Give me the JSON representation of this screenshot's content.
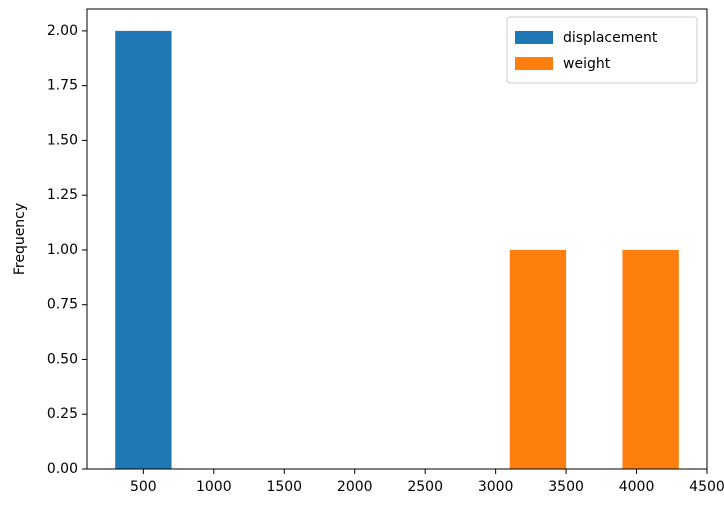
{
  "chart_data": {
    "type": "histogram",
    "y_label": "Frequency",
    "bins": [
      300,
      700,
      1100,
      1500,
      1900,
      2300,
      2700,
      3100,
      3500,
      3900,
      4300
    ],
    "series": [
      {
        "name": "displacement",
        "color": "#1f77b4",
        "values": [
          2,
          0,
          0,
          0,
          0,
          0,
          0,
          0,
          0,
          0
        ]
      },
      {
        "name": "weight",
        "color": "#ff7f0e",
        "values": [
          0,
          0,
          0,
          0,
          0,
          0,
          0,
          1,
          0,
          1
        ]
      }
    ],
    "xlim": [
      100,
      4500
    ],
    "xticks": [
      500,
      1000,
      1500,
      2000,
      2500,
      3000,
      3500,
      4000,
      4500
    ],
    "ylim": [
      0,
      2.1
    ],
    "yticks": [
      {
        "value": 0,
        "label": "0.00"
      },
      {
        "value": 0.25,
        "label": "0.25"
      },
      {
        "value": 0.5,
        "label": "0.50"
      },
      {
        "value": 0.75,
        "label": "0.75"
      },
      {
        "value": 1,
        "label": "1.00"
      },
      {
        "value": 1.25,
        "label": "1.25"
      },
      {
        "value": 1.5,
        "label": "1.50"
      },
      {
        "value": 1.75,
        "label": "1.75"
      },
      {
        "value": 2,
        "label": "2.00"
      }
    ],
    "legend": "upper right"
  }
}
